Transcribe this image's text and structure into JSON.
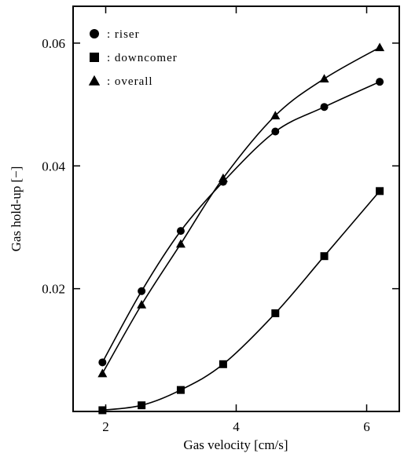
{
  "chart_data": {
    "type": "line",
    "title": "",
    "xlabel": "Gas velocity [cm/s]",
    "ylabel": "Gas hold-up [−]",
    "xlim": [
      1.5,
      6.5
    ],
    "ylim": [
      0,
      0.066
    ],
    "xticks": [
      2,
      4,
      6
    ],
    "xtick_labels": [
      "2",
      "4",
      "6"
    ],
    "yticks": [
      0.02,
      0.04,
      0.06
    ],
    "ytick_labels": [
      "0.02",
      "0.04",
      "0.06"
    ],
    "grid": false,
    "legend_position": "top-left",
    "series": [
      {
        "name": "riser",
        "legend_label": ": riser",
        "marker": "circle",
        "x": [
          1.95,
          2.55,
          3.15,
          3.8,
          4.6,
          5.35,
          6.2
        ],
        "y": [
          0.008,
          0.0196,
          0.0294,
          0.0374,
          0.0456,
          0.0496,
          0.0537
        ]
      },
      {
        "name": "downcomer",
        "legend_label": ": downcomer",
        "marker": "square",
        "x": [
          1.95,
          2.55,
          3.15,
          3.8,
          4.6,
          5.35,
          6.2
        ],
        "y": [
          0.0002,
          0.001,
          0.0035,
          0.0077,
          0.016,
          0.0253,
          0.0359
        ]
      },
      {
        "name": "overall",
        "legend_label": ": overall",
        "marker": "triangle",
        "x": [
          1.95,
          2.55,
          3.15,
          3.8,
          4.6,
          5.35,
          6.2
        ],
        "y": [
          0.0062,
          0.0174,
          0.0273,
          0.038,
          0.0482,
          0.0542,
          0.0593
        ]
      }
    ]
  }
}
